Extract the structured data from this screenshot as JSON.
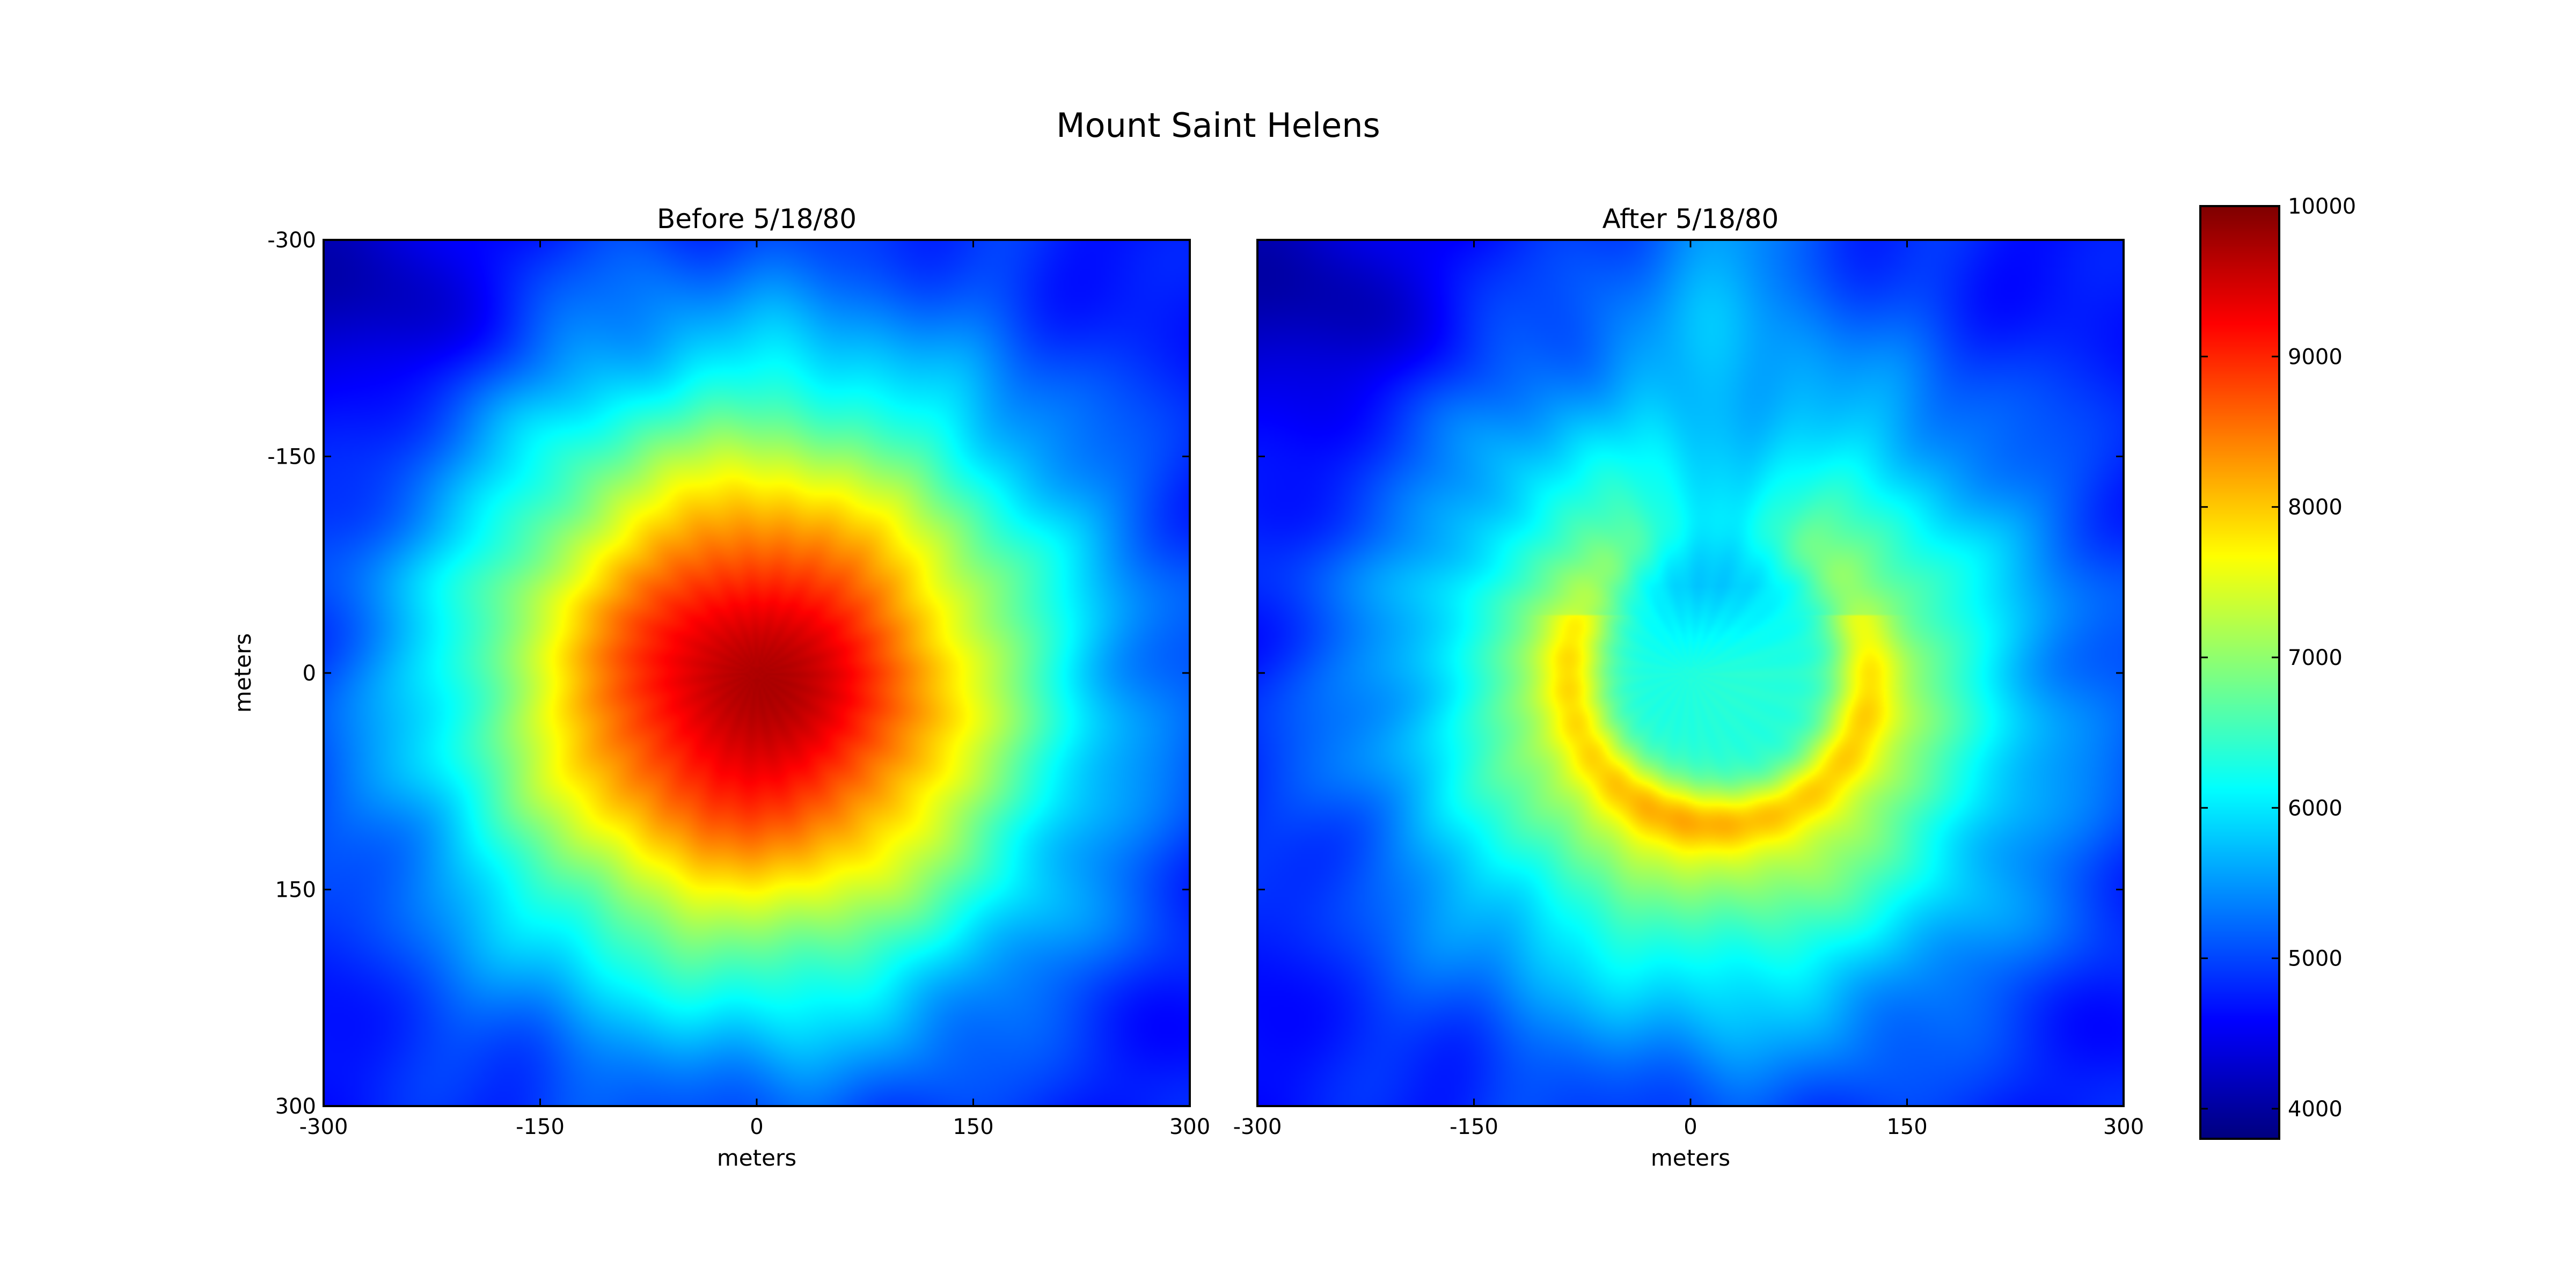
{
  "chart_data": {
    "title": "Mount Saint Helens",
    "type": "heatmap",
    "colormap": "jet",
    "panels": [
      {
        "title": "Before 5/18/80",
        "xlabel": "meters",
        "ylabel": "meters",
        "xlim": [
          -300,
          300
        ],
        "ylim": [
          -300,
          300
        ],
        "y_axis_inverted": true,
        "xticks": [
          "-300",
          "-150",
          "0",
          "150",
          "300"
        ],
        "yticks": [
          "-300",
          "-150",
          "0",
          "150",
          "300"
        ],
        "surface": {
          "base": 4600,
          "peak": 9700,
          "center": [
            0,
            10
          ],
          "radius": 200,
          "shape": "cone",
          "crater": null
        }
      },
      {
        "title": "After 5/18/80",
        "xlabel": "meters",
        "ylabel": "",
        "xlim": [
          -300,
          300
        ],
        "ylim": [
          -300,
          300
        ],
        "y_axis_inverted": true,
        "xticks": [
          "-300",
          "-150",
          "0",
          "150",
          "300"
        ],
        "yticks": [],
        "surface": {
          "base": 4600,
          "peak": 8300,
          "center": [
            20,
            20
          ],
          "radius": 200,
          "shape": "horseshoe",
          "crater": {
            "center": [
              20,
              0
            ],
            "radius": 95,
            "floor": 6300,
            "open_to": "north"
          }
        }
      }
    ],
    "colorbar": {
      "min": 3800,
      "max": 10000,
      "ticks": [
        "4000",
        "5000",
        "6000",
        "7000",
        "8000",
        "9000",
        "10000"
      ]
    }
  }
}
